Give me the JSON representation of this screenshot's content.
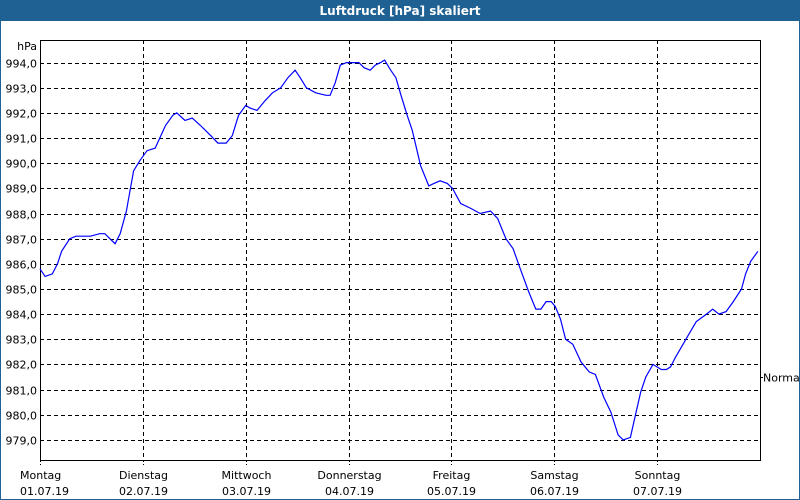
{
  "window": {
    "title": "Luftdruck [hPa] skaliert"
  },
  "chart_data": {
    "type": "line",
    "title": "Luftdruck [hPa] skaliert",
    "ylabel": "hPa",
    "xlabel": "",
    "ylim": [
      978.2,
      994.9
    ],
    "xlim": [
      0,
      7
    ],
    "grid": true,
    "yticks": [
      979,
      980,
      981,
      982,
      983,
      984,
      985,
      986,
      987,
      988,
      989,
      990,
      991,
      992,
      993,
      994
    ],
    "ytick_labels": [
      "979,0",
      "980,0",
      "981,0",
      "982,0",
      "983,0",
      "984,0",
      "985,0",
      "986,0",
      "987,0",
      "988,0",
      "989,0",
      "990,0",
      "991,0",
      "992,0",
      "993,0",
      "994,0"
    ],
    "xticks": [
      0,
      1,
      2,
      3,
      4,
      5,
      6
    ],
    "xtick_days": [
      "Montag",
      "Dienstag",
      "Mittwoch",
      "Donnerstag",
      "Freitag",
      "Samstag",
      "Sonntag"
    ],
    "xtick_dates": [
      "01.07.19",
      "02.07.19",
      "03.07.19",
      "04.07.19",
      "05.07.19",
      "06.07.19",
      "07.07.19"
    ],
    "reference": {
      "label": "Normal",
      "value": 981.5
    },
    "series": [
      {
        "name": "Luftdruck",
        "color": "#0000ff",
        "x": [
          0,
          0.05,
          0.12,
          0.17,
          0.21,
          0.29,
          0.35,
          0.44,
          0.49,
          0.58,
          0.63,
          0.68,
          0.73,
          0.78,
          0.84,
          0.91,
          0.97,
          1.04,
          1.12,
          1.22,
          1.29,
          1.33,
          1.41,
          1.48,
          1.56,
          1.66,
          1.73,
          1.81,
          1.87,
          1.93,
          2.0,
          2.04,
          2.11,
          2.19,
          2.26,
          2.34,
          2.41,
          2.48,
          2.53,
          2.59,
          2.68,
          2.78,
          2.82,
          2.87,
          2.92,
          2.98,
          3.04,
          3.1,
          3.15,
          3.21,
          3.26,
          3.31,
          3.35,
          3.41,
          3.46,
          3.51,
          3.57,
          3.62,
          3.7,
          3.78,
          3.83,
          3.89,
          3.96,
          4.01,
          4.09,
          4.19,
          4.28,
          4.38,
          4.45,
          4.53,
          4.6,
          4.67,
          4.75,
          4.82,
          4.87,
          4.92,
          4.97,
          5.01,
          5.06,
          5.11,
          5.18,
          5.26,
          5.34,
          5.4,
          5.48,
          5.55,
          5.62,
          5.67,
          5.74,
          5.79,
          5.84,
          5.89,
          5.96,
          6.04,
          6.09,
          6.13,
          6.18,
          6.28,
          6.38,
          6.48,
          6.54,
          6.6,
          6.67,
          6.74,
          6.82,
          6.86,
          6.91,
          6.98
        ],
        "values": [
          985.8,
          985.5,
          985.6,
          986.0,
          986.5,
          987.0,
          987.1,
          987.1,
          987.1,
          987.2,
          987.2,
          987.0,
          986.8,
          987.2,
          988.1,
          989.7,
          990.1,
          990.5,
          990.6,
          991.5,
          991.9,
          992.0,
          991.7,
          991.8,
          991.5,
          991.1,
          990.8,
          990.8,
          991.1,
          991.9,
          992.3,
          992.2,
          992.1,
          992.5,
          992.8,
          993.0,
          993.4,
          993.7,
          993.4,
          993.0,
          992.8,
          992.7,
          992.7,
          993.2,
          993.9,
          994.0,
          994.0,
          994.0,
          993.8,
          993.7,
          993.9,
          994.0,
          994.1,
          993.7,
          993.4,
          992.7,
          991.9,
          991.3,
          989.9,
          989.1,
          989.2,
          989.3,
          989.2,
          989.0,
          988.4,
          988.2,
          988.0,
          988.1,
          987.8,
          987.0,
          986.6,
          985.8,
          984.9,
          984.2,
          984.2,
          984.5,
          984.5,
          984.3,
          983.8,
          983.0,
          982.8,
          982.1,
          981.7,
          981.6,
          980.7,
          980.1,
          979.2,
          979.0,
          979.1,
          980.0,
          980.9,
          981.5,
          982.0,
          981.8,
          981.8,
          981.9,
          982.3,
          983.0,
          983.7,
          984.0,
          984.2,
          984.0,
          984.1,
          984.5,
          985.0,
          985.6,
          986.1,
          986.5
        ]
      }
    ]
  }
}
